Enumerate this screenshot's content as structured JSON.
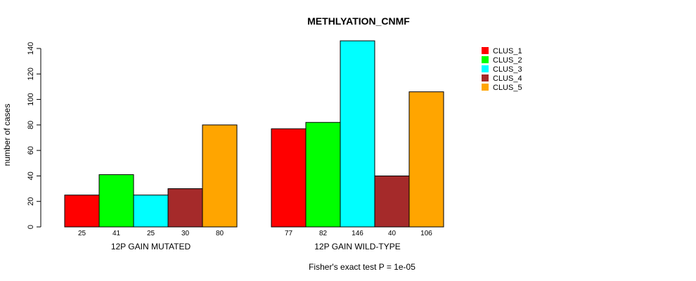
{
  "chart_data": {
    "type": "bar",
    "title": "METHLYATION_CNMF",
    "xlabel": "",
    "ylabel": "number of cases",
    "footnote": "Fisher's exact test P = 1e-05",
    "ylim": [
      0,
      146
    ],
    "yticks": [
      0,
      20,
      40,
      60,
      80,
      100,
      120,
      140
    ],
    "categories": [
      "12P GAIN MUTATED",
      "12P GAIN WILD-TYPE"
    ],
    "series": [
      {
        "name": "CLUS_1",
        "color": "#ff0000",
        "values": [
          25,
          77
        ]
      },
      {
        "name": "CLUS_2",
        "color": "#00ff00",
        "values": [
          41,
          82
        ]
      },
      {
        "name": "CLUS_3",
        "color": "#00ffff",
        "values": [
          25,
          146
        ]
      },
      {
        "name": "CLUS_4",
        "color": "#a52a2a",
        "values": [
          30,
          40
        ]
      },
      {
        "name": "CLUS_5",
        "color": "#ffa500",
        "values": [
          80,
          106
        ]
      }
    ],
    "legend_position": "top-right",
    "grid": false
  }
}
